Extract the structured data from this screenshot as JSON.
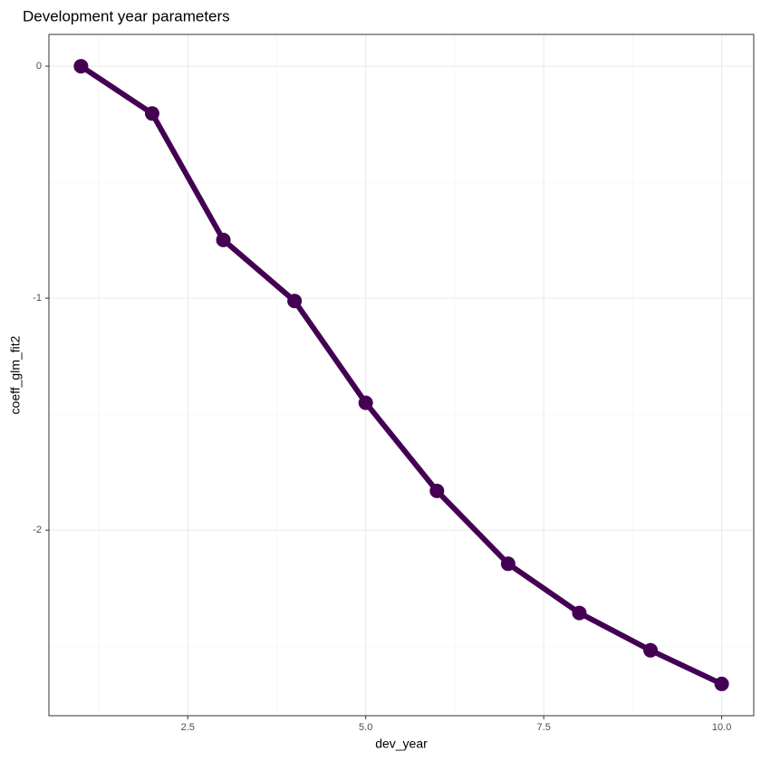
{
  "chart_data": {
    "type": "line",
    "title": "Development year parameters",
    "x_label": "dev_year",
    "y_label": "coeff_glm_fit2",
    "x": [
      1,
      2,
      3,
      4,
      5,
      6,
      7,
      8,
      9,
      10
    ],
    "series": [
      {
        "name": "coeff_glm_fit2",
        "color": "#440154",
        "values": [
          0,
          -0.204,
          -0.749,
          -1.012,
          -1.451,
          -1.831,
          -2.145,
          -2.357,
          -2.518,
          -2.663
        ]
      }
    ],
    "xlim": [
      0.55,
      10.45
    ],
    "ylim": [
      -2.8,
      0.137
    ],
    "xticks": [
      2.5,
      {
        "value": 5,
        "label": "5.0"
      },
      7.5,
      {
        "value": 10,
        "label": "10.0"
      }
    ],
    "yticks": [
      0,
      -1,
      -2
    ],
    "grid": true
  }
}
